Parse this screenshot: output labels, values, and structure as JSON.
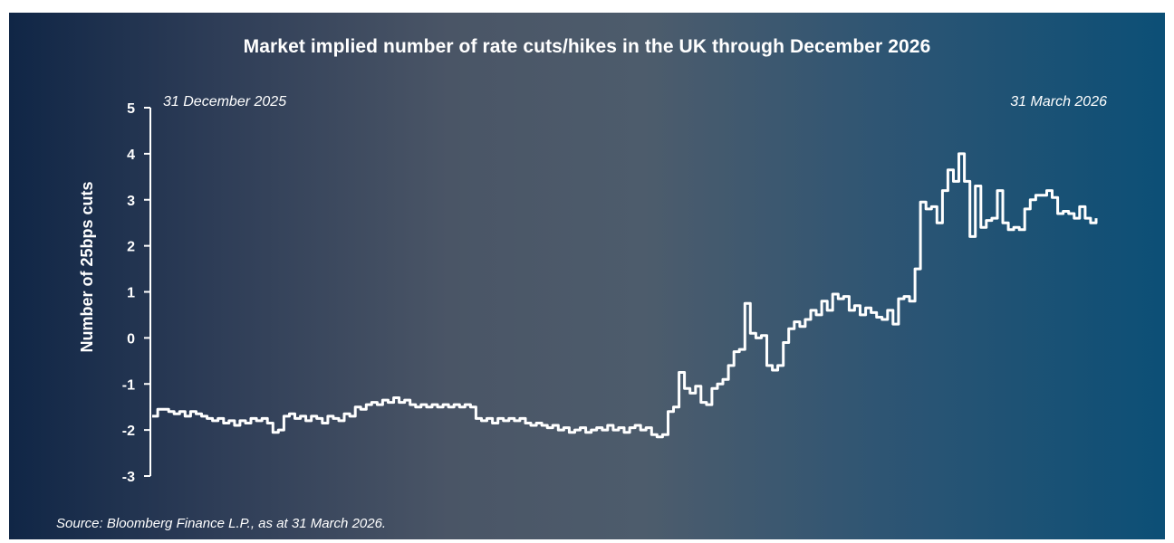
{
  "chart_data": {
    "type": "line",
    "title": "Market implied number of rate cuts/hikes in the UK through December 2026",
    "ylabel": "Number of 25bps cuts",
    "xlabel": "",
    "ylim": [
      -3,
      5
    ],
    "yticks": [
      "5",
      "4",
      "3",
      "2",
      "1",
      "0",
      "-1",
      "-2",
      "-3"
    ],
    "grid": false,
    "x_start_label": "31 December 2025",
    "x_end_label": "31 March 2026",
    "source": "Source: Bloomberg Finance L.P., as at 31 March 2026.",
    "line_color": "#ffffff",
    "series": [
      {
        "values": [
          -1.7,
          -1.55,
          -1.55,
          -1.6,
          -1.65,
          -1.6,
          -1.7,
          -1.6,
          -1.65,
          -1.7,
          -1.75,
          -1.8,
          -1.75,
          -1.85,
          -1.8,
          -1.9,
          -1.8,
          -1.85,
          -1.75,
          -1.8,
          -1.75,
          -1.85,
          -2.05,
          -2.0,
          -1.7,
          -1.65,
          -1.75,
          -1.7,
          -1.8,
          -1.7,
          -1.75,
          -1.85,
          -1.7,
          -1.75,
          -1.8,
          -1.65,
          -1.7,
          -1.5,
          -1.55,
          -1.45,
          -1.4,
          -1.45,
          -1.35,
          -1.4,
          -1.3,
          -1.4,
          -1.35,
          -1.45,
          -1.5,
          -1.45,
          -1.5,
          -1.45,
          -1.5,
          -1.45,
          -1.5,
          -1.45,
          -1.5,
          -1.45,
          -1.5,
          -1.75,
          -1.8,
          -1.75,
          -1.85,
          -1.75,
          -1.8,
          -1.75,
          -1.8,
          -1.75,
          -1.85,
          -1.9,
          -1.85,
          -1.9,
          -1.95,
          -1.9,
          -2.0,
          -1.95,
          -2.05,
          -2.0,
          -1.95,
          -2.05,
          -2.0,
          -1.95,
          -2.0,
          -1.9,
          -2.0,
          -1.95,
          -2.05,
          -1.95,
          -1.9,
          -2.0,
          -1.95,
          -2.1,
          -2.15,
          -2.1,
          -1.6,
          -1.5,
          -0.75,
          -1.1,
          -1.2,
          -1.05,
          -1.4,
          -1.45,
          -1.1,
          -1.0,
          -0.9,
          -0.6,
          -0.3,
          -0.25,
          0.75,
          0.1,
          0.0,
          0.05,
          -0.6,
          -0.7,
          -0.6,
          -0.1,
          0.2,
          0.35,
          0.25,
          0.4,
          0.6,
          0.5,
          0.8,
          0.6,
          0.95,
          0.85,
          0.9,
          0.6,
          0.7,
          0.5,
          0.65,
          0.55,
          0.45,
          0.4,
          0.6,
          0.3,
          0.85,
          0.9,
          0.8,
          1.5,
          2.95,
          2.8,
          2.85,
          2.5,
          3.2,
          3.65,
          3.4,
          4.0,
          3.4,
          2.2,
          3.3,
          2.4,
          2.55,
          2.6,
          3.2,
          2.5,
          2.35,
          2.4,
          2.35,
          2.8,
          3.0,
          3.1,
          3.1,
          3.2,
          3.05,
          2.7,
          2.75,
          2.7,
          2.6,
          2.85,
          2.6,
          2.5,
          2.6
        ]
      }
    ]
  }
}
